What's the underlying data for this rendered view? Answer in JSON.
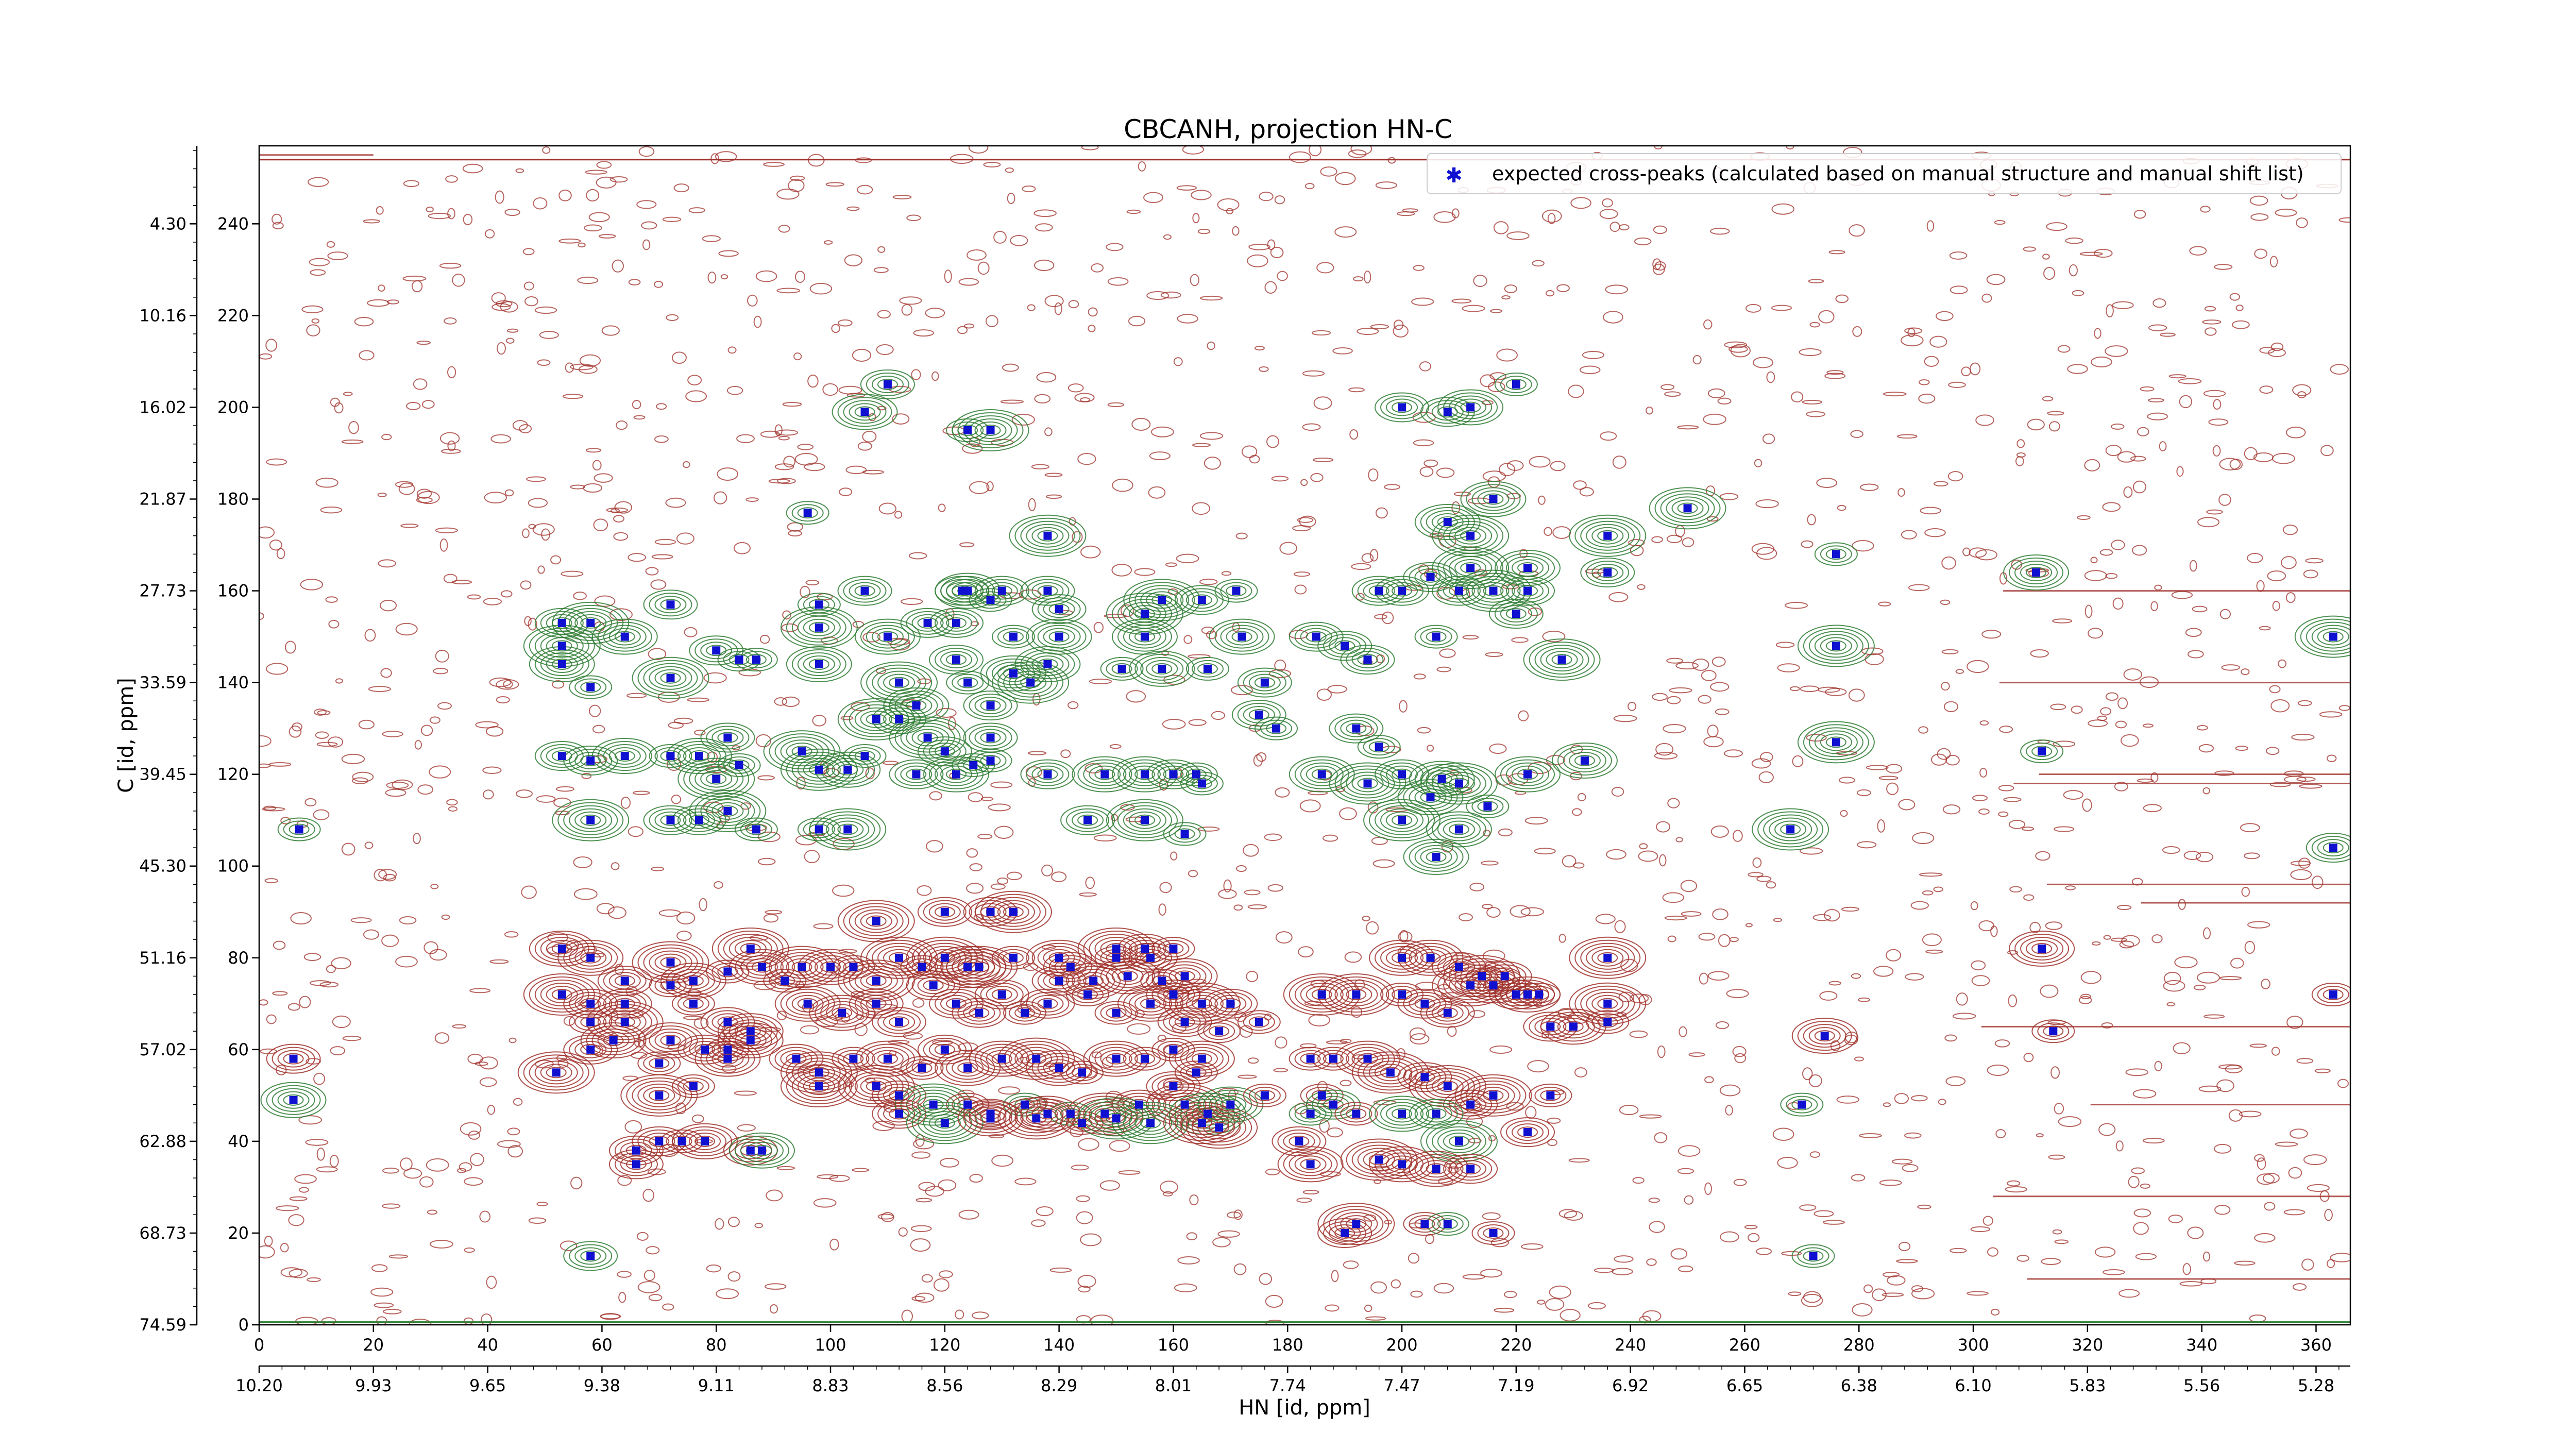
{
  "chart_data": {
    "type": "scatter",
    "title": "CBCANH, projection HN-C",
    "xlabel": "HN [id, ppm]",
    "ylabel": "C [id, ppm]",
    "xlim": [
      0,
      366
    ],
    "ylim": [
      0,
      257
    ],
    "x_ticks_index": [
      "0",
      "20",
      "40",
      "60",
      "80",
      "100",
      "120",
      "140",
      "160",
      "180",
      "200",
      "220",
      "240",
      "260",
      "280",
      "300",
      "320",
      "340",
      "360"
    ],
    "x_ticks_ppm": [
      "10.20",
      "9.93",
      "9.65",
      "9.38",
      "9.11",
      "8.83",
      "8.56",
      "8.29",
      "8.01",
      "7.74",
      "7.47",
      "7.19",
      "6.92",
      "6.65",
      "6.38",
      "6.10",
      "5.83",
      "5.56",
      "5.28"
    ],
    "y_ticks_index": [
      "0",
      "20",
      "40",
      "60",
      "80",
      "100",
      "120",
      "140",
      "160",
      "180",
      "200",
      "220",
      "240"
    ],
    "y_ticks_ppm": [
      "74.59",
      "68.73",
      "62.88",
      "57.02",
      "51.16",
      "45.30",
      "39.45",
      "33.59",
      "27.73",
      "21.87",
      "16.02",
      "10.16",
      "4.30"
    ],
    "legend_position": "top-right",
    "colors": {
      "positive_contour": "#2e7d32",
      "negative_contour": "#a0302a",
      "marker": "#1010d0"
    },
    "series": [
      {
        "name": "expected cross-peaks (calculated based on manual structure and manual shift list)",
        "points": [
          [
            6,
            58
          ],
          [
            6,
            49
          ],
          [
            7,
            108
          ],
          [
            53,
            153
          ],
          [
            53,
            148
          ],
          [
            53,
            144
          ],
          [
            58,
            153
          ],
          [
            64,
            150
          ],
          [
            58,
            139
          ],
          [
            53,
            124
          ],
          [
            58,
            123
          ],
          [
            64,
            124
          ],
          [
            58,
            110
          ],
          [
            72,
            157
          ],
          [
            72,
            141
          ],
          [
            80,
            147
          ],
          [
            84,
            145
          ],
          [
            87,
            145
          ],
          [
            72,
            124
          ],
          [
            77,
            124
          ],
          [
            82,
            128
          ],
          [
            80,
            119
          ],
          [
            84,
            122
          ],
          [
            72,
            110
          ],
          [
            77,
            110
          ],
          [
            82,
            112
          ],
          [
            87,
            108
          ],
          [
            98,
            157
          ],
          [
            98,
            152
          ],
          [
            98,
            144
          ],
          [
            95,
            125
          ],
          [
            98,
            121
          ],
          [
            103,
            121
          ],
          [
            106,
            124
          ],
          [
            98,
            108
          ],
          [
            103,
            108
          ],
          [
            106,
            160
          ],
          [
            110,
            205
          ],
          [
            106,
            199
          ],
          [
            96,
            177
          ],
          [
            117,
            153
          ],
          [
            110,
            150
          ],
          [
            112,
            140
          ],
          [
            115,
            135
          ],
          [
            112,
            132
          ],
          [
            108,
            132
          ],
          [
            117,
            128
          ],
          [
            120,
            125
          ],
          [
            115,
            120
          ],
          [
            122,
            120
          ],
          [
            125,
            122
          ],
          [
            128,
            123
          ],
          [
            128,
            135
          ],
          [
            128,
            128
          ],
          [
            124,
            140
          ],
          [
            122,
            145
          ],
          [
            122,
            153
          ],
          [
            132,
            142
          ],
          [
            135,
            140
          ],
          [
            138,
            144
          ],
          [
            132,
            150
          ],
          [
            128,
            158
          ],
          [
            124,
            160
          ],
          [
            123,
            160
          ],
          [
            130,
            160
          ],
          [
            140,
            150
          ],
          [
            140,
            156
          ],
          [
            138,
            160
          ],
          [
            138,
            172
          ],
          [
            128,
            195
          ],
          [
            124,
            195
          ],
          [
            138,
            120
          ],
          [
            148,
            120
          ],
          [
            155,
            120
          ],
          [
            160,
            120
          ],
          [
            164,
            120
          ],
          [
            165,
            118
          ],
          [
            145,
            110
          ],
          [
            155,
            110
          ],
          [
            162,
            107
          ],
          [
            151,
            143
          ],
          [
            158,
            143
          ],
          [
            155,
            150
          ],
          [
            155,
            155
          ],
          [
            158,
            158
          ],
          [
            165,
            158
          ],
          [
            166,
            143
          ],
          [
            171,
            160
          ],
          [
            172,
            150
          ],
          [
            176,
            140
          ],
          [
            175,
            133
          ],
          [
            178,
            130
          ],
          [
            185,
            150
          ],
          [
            190,
            148
          ],
          [
            194,
            145
          ],
          [
            186,
            120
          ],
          [
            192,
            130
          ],
          [
            194,
            118
          ],
          [
            196,
            126
          ],
          [
            200,
            120
          ],
          [
            200,
            200
          ],
          [
            208,
            199
          ],
          [
            212,
            200
          ],
          [
            220,
            205
          ],
          [
            200,
            160
          ],
          [
            196,
            160
          ],
          [
            206,
            150
          ],
          [
            205,
            163
          ],
          [
            210,
            160
          ],
          [
            212,
            165
          ],
          [
            216,
            160
          ],
          [
            220,
            155
          ],
          [
            208,
            175
          ],
          [
            212,
            172
          ],
          [
            216,
            180
          ],
          [
            222,
            165
          ],
          [
            222,
            160
          ],
          [
            228,
            145
          ],
          [
            207,
            119
          ],
          [
            210,
            118
          ],
          [
            205,
            115
          ],
          [
            200,
            110
          ],
          [
            206,
            102
          ],
          [
            210,
            108
          ],
          [
            215,
            113
          ],
          [
            222,
            120
          ],
          [
            232,
            123
          ],
          [
            236,
            172
          ],
          [
            236,
            164
          ],
          [
            250,
            178
          ],
          [
            276,
            168
          ],
          [
            276,
            127
          ],
          [
            276,
            148
          ],
          [
            268,
            108
          ],
          [
            312,
            125
          ],
          [
            311,
            164
          ],
          [
            363,
            150
          ],
          [
            363,
            104
          ],
          [
            363,
            72
          ],
          [
            53,
            82
          ],
          [
            58,
            80
          ],
          [
            64,
            75
          ],
          [
            58,
            70
          ],
          [
            64,
            70
          ],
          [
            53,
            72
          ],
          [
            58,
            66
          ],
          [
            64,
            66
          ],
          [
            72,
            79
          ],
          [
            72,
            74
          ],
          [
            76,
            75
          ],
          [
            82,
            77
          ],
          [
            86,
            82
          ],
          [
            88,
            78
          ],
          [
            76,
            70
          ],
          [
            82,
            66
          ],
          [
            86,
            64
          ],
          [
            92,
            75
          ],
          [
            95,
            78
          ],
          [
            100,
            78
          ],
          [
            104,
            78
          ],
          [
            108,
            75
          ],
          [
            112,
            80
          ],
          [
            116,
            78
          ],
          [
            120,
            80
          ],
          [
            124,
            78
          ],
          [
            126,
            78
          ],
          [
            96,
            70
          ],
          [
            102,
            68
          ],
          [
            108,
            70
          ],
          [
            112,
            66
          ],
          [
            118,
            74
          ],
          [
            122,
            70
          ],
          [
            126,
            68
          ],
          [
            130,
            72
          ],
          [
            134,
            68
          ],
          [
            138,
            70
          ],
          [
            140,
            75
          ],
          [
            142,
            78
          ],
          [
            146,
            75
          ],
          [
            150,
            80
          ],
          [
            152,
            76
          ],
          [
            156,
            80
          ],
          [
            158,
            75
          ],
          [
            160,
            72
          ],
          [
            165,
            70
          ],
          [
            132,
            80
          ],
          [
            140,
            80
          ],
          [
            145,
            72
          ],
          [
            150,
            68
          ],
          [
            156,
            70
          ],
          [
            162,
            66
          ],
          [
            168,
            64
          ],
          [
            108,
            88
          ],
          [
            120,
            90
          ],
          [
            128,
            90
          ],
          [
            132,
            90
          ],
          [
            150,
            82
          ],
          [
            155,
            82
          ],
          [
            160,
            82
          ],
          [
            162,
            76
          ],
          [
            170,
            70
          ],
          [
            175,
            66
          ],
          [
            186,
            72
          ],
          [
            192,
            72
          ],
          [
            200,
            72
          ],
          [
            204,
            70
          ],
          [
            208,
            68
          ],
          [
            212,
            74
          ],
          [
            216,
            74
          ],
          [
            220,
            72
          ],
          [
            224,
            72
          ],
          [
            226,
            65
          ],
          [
            230,
            65
          ],
          [
            236,
            80
          ],
          [
            236,
            70
          ],
          [
            236,
            66
          ],
          [
            200,
            80
          ],
          [
            205,
            80
          ],
          [
            210,
            78
          ],
          [
            214,
            76
          ],
          [
            218,
            76
          ],
          [
            222,
            72
          ],
          [
            94,
            58
          ],
          [
            98,
            55
          ],
          [
            98,
            52
          ],
          [
            104,
            58
          ],
          [
            110,
            58
          ],
          [
            116,
            56
          ],
          [
            120,
            60
          ],
          [
            124,
            56
          ],
          [
            130,
            58
          ],
          [
            136,
            58
          ],
          [
            140,
            56
          ],
          [
            144,
            55
          ],
          [
            150,
            58
          ],
          [
            155,
            58
          ],
          [
            160,
            60
          ],
          [
            164,
            55
          ],
          [
            165,
            58
          ],
          [
            108,
            52
          ],
          [
            112,
            50
          ],
          [
            118,
            48
          ],
          [
            124,
            48
          ],
          [
            128,
            46
          ],
          [
            134,
            48
          ],
          [
            138,
            46
          ],
          [
            142,
            46
          ],
          [
            148,
            46
          ],
          [
            154,
            48
          ],
          [
            160,
            52
          ],
          [
            162,
            48
          ],
          [
            166,
            46
          ],
          [
            112,
            46
          ],
          [
            120,
            44
          ],
          [
            128,
            45
          ],
          [
            136,
            45
          ],
          [
            144,
            44
          ],
          [
            150,
            45
          ],
          [
            156,
            44
          ],
          [
            165,
            44
          ],
          [
            168,
            43
          ],
          [
            170,
            48
          ],
          [
            176,
            50
          ],
          [
            184,
            58
          ],
          [
            188,
            58
          ],
          [
            194,
            58
          ],
          [
            198,
            55
          ],
          [
            204,
            54
          ],
          [
            208,
            52
          ],
          [
            212,
            48
          ],
          [
            216,
            50
          ],
          [
            186,
            50
          ],
          [
            188,
            48
          ],
          [
            192,
            46
          ],
          [
            200,
            46
          ],
          [
            206,
            46
          ],
          [
            210,
            40
          ],
          [
            212,
            34
          ],
          [
            206,
            34
          ],
          [
            196,
            36
          ],
          [
            200,
            35
          ],
          [
            184,
            46
          ],
          [
            182,
            40
          ],
          [
            184,
            35
          ],
          [
            190,
            20
          ],
          [
            192,
            22
          ],
          [
            204,
            22
          ],
          [
            208,
            22
          ],
          [
            216,
            20
          ],
          [
            222,
            42
          ],
          [
            226,
            50
          ],
          [
            270,
            48
          ],
          [
            274,
            63
          ],
          [
            272,
            15
          ],
          [
            58,
            15
          ],
          [
            66,
            35
          ],
          [
            66,
            38
          ],
          [
            70,
            40
          ],
          [
            74,
            40
          ],
          [
            78,
            40
          ],
          [
            86,
            38
          ],
          [
            88,
            38
          ],
          [
            82,
            58
          ],
          [
            82,
            60
          ],
          [
            86,
            62
          ],
          [
            78,
            60
          ],
          [
            76,
            52
          ],
          [
            70,
            50
          ],
          [
            70,
            57
          ],
          [
            62,
            62
          ],
          [
            58,
            60
          ],
          [
            52,
            55
          ],
          [
            72,
            62
          ],
          [
            314,
            64
          ],
          [
            312,
            82
          ]
        ]
      }
    ]
  }
}
